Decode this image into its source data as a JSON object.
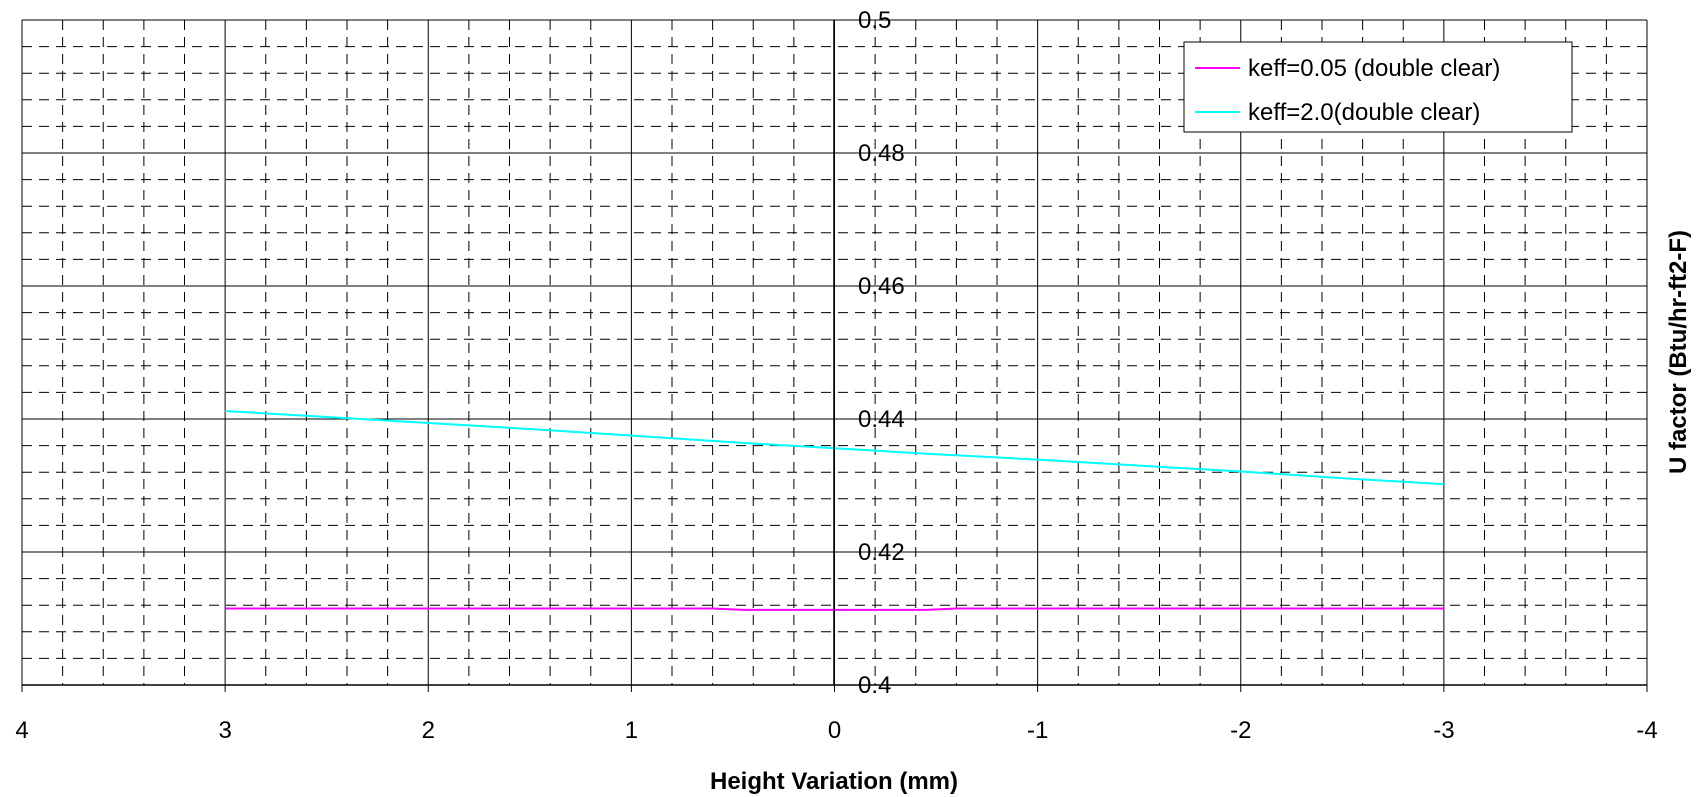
{
  "chart_data": {
    "type": "line",
    "xlabel": "Height Variation (mm)",
    "ylabel": "U factor (Btu/hr-ft2-F)",
    "xlim": [
      4,
      -4
    ],
    "ylim": [
      0.4,
      0.5
    ],
    "x_ticks": [
      "4",
      "3",
      "2",
      "1",
      "0",
      "-1",
      "-2",
      "-3",
      "-4"
    ],
    "y_ticks": [
      "0.4",
      "0.42",
      "0.44",
      "0.46",
      "0.48",
      "0.5"
    ],
    "x_axis_reversed": true,
    "grid": true,
    "minor_grid": "dashed",
    "legend_position": "top-right",
    "series": [
      {
        "name": "keff=0.05 (double clear)",
        "color": "#ff00ff",
        "x": [
          3,
          2.5,
          2,
          1.5,
          1,
          0.6,
          0.45,
          0,
          -0.45,
          -0.6,
          -1,
          -1.5,
          -2,
          -2.5,
          -3
        ],
        "y": [
          0.4115,
          0.4115,
          0.4115,
          0.4115,
          0.4115,
          0.4115,
          0.4113,
          0.4113,
          0.4113,
          0.4115,
          0.4115,
          0.4115,
          0.4115,
          0.4115,
          0.4115
        ]
      },
      {
        "name": "keff=2.0(double clear)",
        "color": "#00ffff",
        "x": [
          3,
          2.5,
          2,
          1.5,
          1,
          0.5,
          0,
          -0.5,
          -1,
          -1.5,
          -2,
          -2.5,
          -3
        ],
        "y": [
          0.4412,
          0.4403,
          0.4394,
          0.4385,
          0.4375,
          0.4365,
          0.4356,
          0.4347,
          0.4339,
          0.433,
          0.4321,
          0.4311,
          0.4302
        ]
      }
    ]
  }
}
